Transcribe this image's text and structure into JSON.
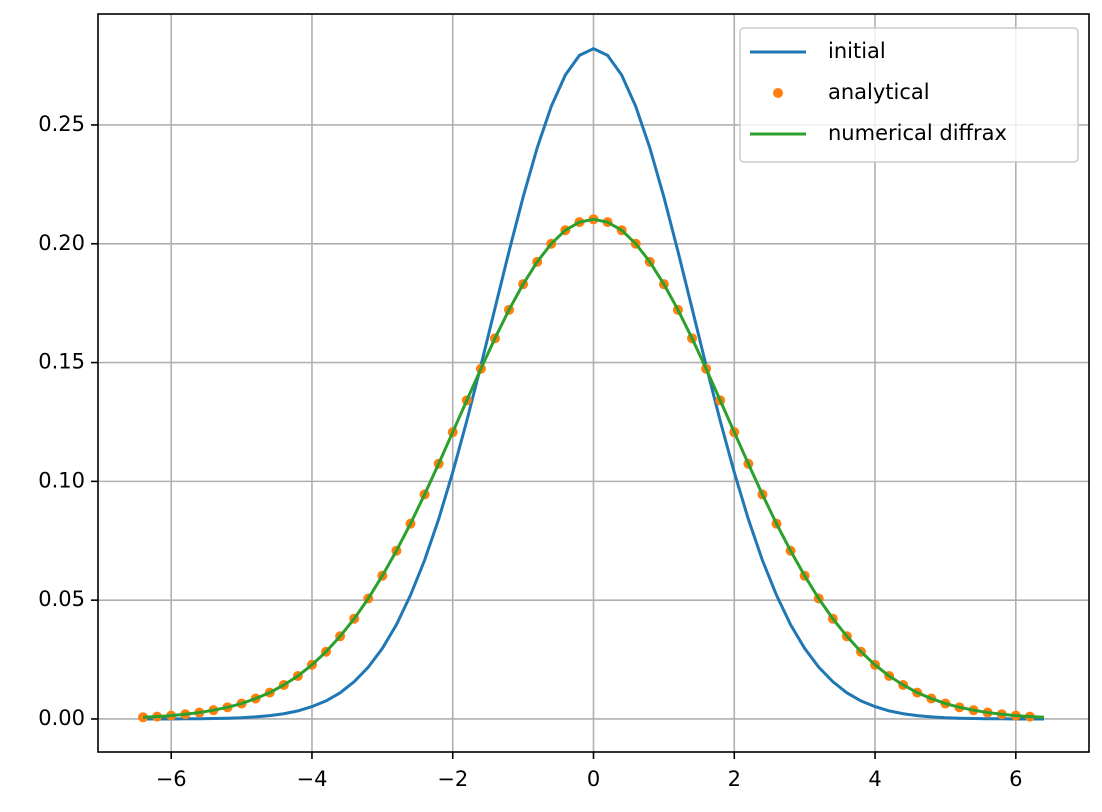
{
  "chart_data": {
    "type": "line",
    "x": [
      -6.4,
      -6.2,
      -6.0,
      -5.8,
      -5.6,
      -5.4,
      -5.2,
      -5.0,
      -4.8,
      -4.6,
      -4.4,
      -4.2,
      -4.0,
      -3.8,
      -3.6,
      -3.4,
      -3.2,
      -3.0,
      -2.8,
      -2.6,
      -2.4,
      -2.2,
      -2.0,
      -1.8,
      -1.6,
      -1.4,
      -1.2,
      -1.0,
      -0.8,
      -0.6,
      -0.4,
      -0.2,
      0,
      0.2,
      0.4,
      0.6,
      0.8,
      1.0,
      1.2,
      1.4,
      1.6,
      1.8,
      2.0,
      2.2,
      2.4,
      2.6,
      2.8,
      3.0,
      3.2,
      3.4,
      3.6,
      3.8,
      4.0,
      4.2,
      4.4,
      4.6,
      4.8,
      5.0,
      5.2,
      5.4,
      5.6,
      5.8,
      6.0,
      6.2,
      6.4
    ],
    "series": [
      {
        "name": "initial",
        "color": "#1f77b4",
        "kind": "line",
        "values": [
          0,
          0,
          0,
          0.0001,
          0.0001,
          0.0002,
          0.0003,
          0.0005,
          0.0009,
          0.0014,
          0.0022,
          0.0034,
          0.0052,
          0.0076,
          0.011,
          0.0157,
          0.0218,
          0.0297,
          0.0397,
          0.0521,
          0.0668,
          0.0841,
          0.1038,
          0.1255,
          0.1487,
          0.1728,
          0.1968,
          0.2197,
          0.2404,
          0.2578,
          0.271,
          0.2793,
          0.2821,
          0.2793,
          0.271,
          0.2578,
          0.2404,
          0.2197,
          0.1968,
          0.1728,
          0.1487,
          0.1255,
          0.1038,
          0.0841,
          0.0668,
          0.0521,
          0.0397,
          0.0297,
          0.0218,
          0.0157,
          0.011,
          0.0076,
          0.0052,
          0.0034,
          0.0022,
          0.0014,
          0.0009,
          0.0005,
          0.0003,
          0.0002,
          0.0001,
          0.0001,
          0,
          0,
          0
        ]
      },
      {
        "name": "analytical",
        "color": "#ff7f0e",
        "kind": "points",
        "values": [
          0.0007,
          0.001,
          0.0014,
          0.002,
          0.0027,
          0.0037,
          0.0049,
          0.0065,
          0.0086,
          0.0111,
          0.0143,
          0.0181,
          0.0228,
          0.0283,
          0.0348,
          0.0422,
          0.0507,
          0.0603,
          0.0708,
          0.0822,
          0.0945,
          0.1074,
          0.1207,
          0.1341,
          0.1474,
          0.1602,
          0.1722,
          0.183,
          0.1924,
          0.2,
          0.2057,
          0.2091,
          0.2103,
          0.2091,
          0.2057,
          0.2,
          0.1924,
          0.183,
          0.1722,
          0.1602,
          0.1474,
          0.1341,
          0.1207,
          0.1074,
          0.0945,
          0.0822,
          0.0708,
          0.0603,
          0.0507,
          0.0422,
          0.0348,
          0.0283,
          0.0228,
          0.0181,
          0.0143,
          0.0111,
          0.0086,
          0.0065,
          0.0049,
          0.0037,
          0.0027,
          0.002,
          0.0014,
          0.001,
          null
        ]
      },
      {
        "name": "numerical diffrax",
        "color": "#2ca02c",
        "kind": "line",
        "values": [
          0.0007,
          0.001,
          0.0014,
          0.002,
          0.0027,
          0.0037,
          0.0049,
          0.0065,
          0.0086,
          0.0111,
          0.0143,
          0.0181,
          0.0228,
          0.0283,
          0.0348,
          0.0422,
          0.0507,
          0.0603,
          0.0708,
          0.0822,
          0.0945,
          0.1074,
          0.1207,
          0.1341,
          0.1474,
          0.1602,
          0.1722,
          0.183,
          0.1924,
          0.2,
          0.2057,
          0.2091,
          0.2103,
          0.2091,
          0.2057,
          0.2,
          0.1924,
          0.183,
          0.1722,
          0.1602,
          0.1474,
          0.1341,
          0.1207,
          0.1074,
          0.0945,
          0.0822,
          0.0708,
          0.0603,
          0.0507,
          0.0422,
          0.0348,
          0.0283,
          0.0228,
          0.0181,
          0.0143,
          0.0111,
          0.0086,
          0.0065,
          0.0049,
          0.0037,
          0.0027,
          0.002,
          0.0014,
          0.001,
          0.0007
        ]
      }
    ],
    "xlim": [
      -7.04,
      7.04
    ],
    "ylim": [
      -0.0139,
      0.2967
    ],
    "xticks": [
      {
        "value": -6,
        "label": "−6"
      },
      {
        "value": -4,
        "label": "−4"
      },
      {
        "value": -2,
        "label": "−2"
      },
      0,
      2,
      4,
      6
    ],
    "yticks": [
      {
        "value": 0,
        "label": "0.00"
      },
      {
        "value": 0.05,
        "label": "0.05"
      },
      {
        "value": 0.1,
        "label": "0.10"
      },
      {
        "value": 0.15,
        "label": "0.15"
      },
      {
        "value": 0.2,
        "label": "0.20"
      },
      {
        "value": 0.25,
        "label": "0.25"
      }
    ],
    "grid": true,
    "legend": "upper right"
  }
}
